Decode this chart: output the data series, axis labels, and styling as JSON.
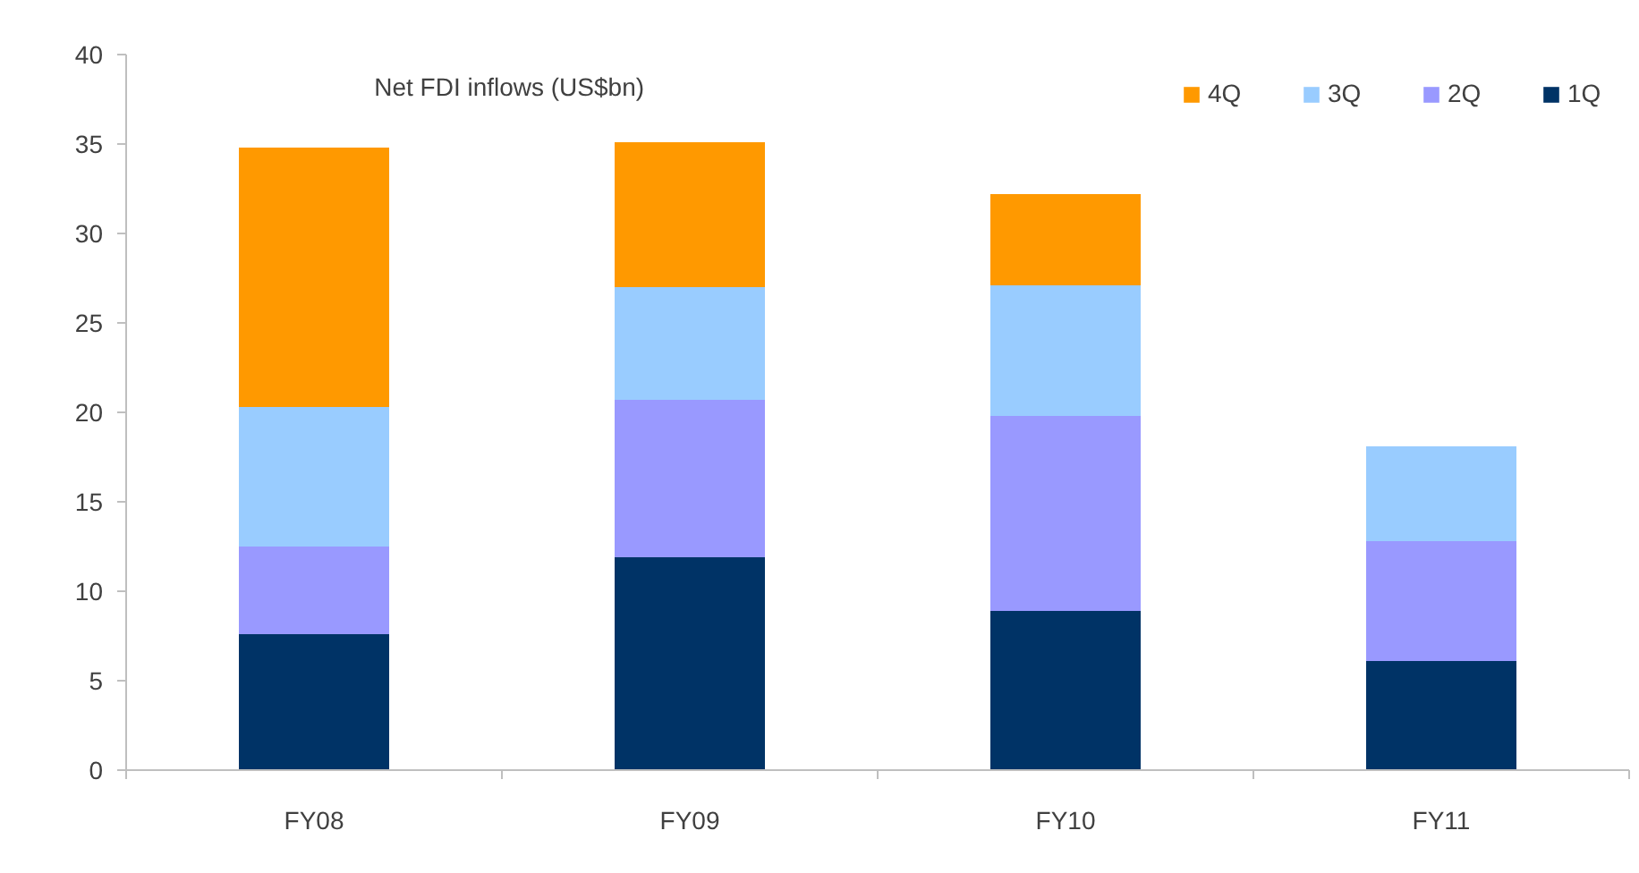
{
  "chart_data": {
    "type": "bar",
    "title": "Net FDI inflows (US$bn)",
    "categories": [
      "FY08",
      "FY09",
      "FY10",
      "FY11"
    ],
    "stacked": true,
    "series": [
      {
        "name": "1Q",
        "color": "#003366",
        "values": [
          7.6,
          11.9,
          8.9,
          6.1
        ]
      },
      {
        "name": "2Q",
        "color": "#9999ff",
        "values": [
          4.9,
          8.8,
          10.9,
          6.7
        ]
      },
      {
        "name": "3Q",
        "color": "#99ccff",
        "values": [
          7.8,
          6.3,
          7.3,
          5.3
        ]
      },
      {
        "name": "4Q",
        "color": "#ff9900",
        "values": [
          14.5,
          8.1,
          5.1,
          null
        ]
      }
    ],
    "ylim": [
      0,
      40
    ],
    "yticks": [
      0,
      5,
      10,
      15,
      20,
      25,
      30,
      35,
      40
    ],
    "legend": "top right"
  }
}
